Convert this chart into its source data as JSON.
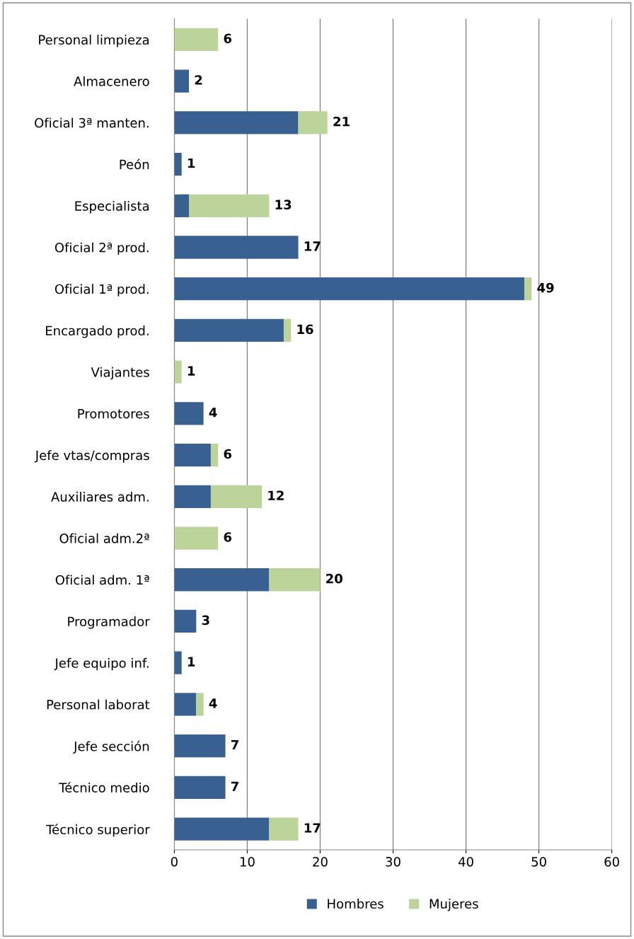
{
  "chart_data": {
    "type": "bar",
    "orientation": "horizontal",
    "stacked": true,
    "categories": [
      "Personal limpieza",
      "Almacenero",
      "Oficial 3ª manten.",
      "Peón",
      "Especialista",
      "Oficial 2ª prod.",
      "Oficial 1ª prod.",
      "Encargado prod.",
      "Viajantes",
      "Promotores",
      "Jefe vtas/compras",
      "Auxiliares adm.",
      "Oficial adm.2ª",
      "Oficial adm. 1ª",
      "Programador",
      "Jefe equipo inf.",
      "Personal laborat",
      "Jefe sección",
      "Técnico medio",
      "Técnico superior"
    ],
    "series": [
      {
        "name": "Hombres",
        "color": "#386192",
        "values": [
          0,
          2,
          17,
          1,
          2,
          17,
          48,
          15,
          0,
          4,
          5,
          5,
          0,
          13,
          3,
          1,
          3,
          7,
          7,
          13
        ]
      },
      {
        "name": "Mujeres",
        "color": "#bcd39a",
        "values": [
          6,
          0,
          4,
          0,
          11,
          0,
          1,
          1,
          1,
          0,
          1,
          7,
          6,
          7,
          0,
          0,
          1,
          0,
          0,
          4
        ]
      }
    ],
    "totals": [
      "6",
      "2",
      "21",
      "1",
      "13",
      "17",
      "49",
      "16",
      "1",
      "4",
      "6",
      "12",
      "6",
      "20",
      "3",
      "1",
      "4",
      "7",
      "7",
      "17"
    ],
    "xlim": [
      0,
      60
    ],
    "xticks": [
      0,
      10,
      20,
      30,
      40,
      50,
      60
    ],
    "grid": "x",
    "legend": "bottom"
  }
}
